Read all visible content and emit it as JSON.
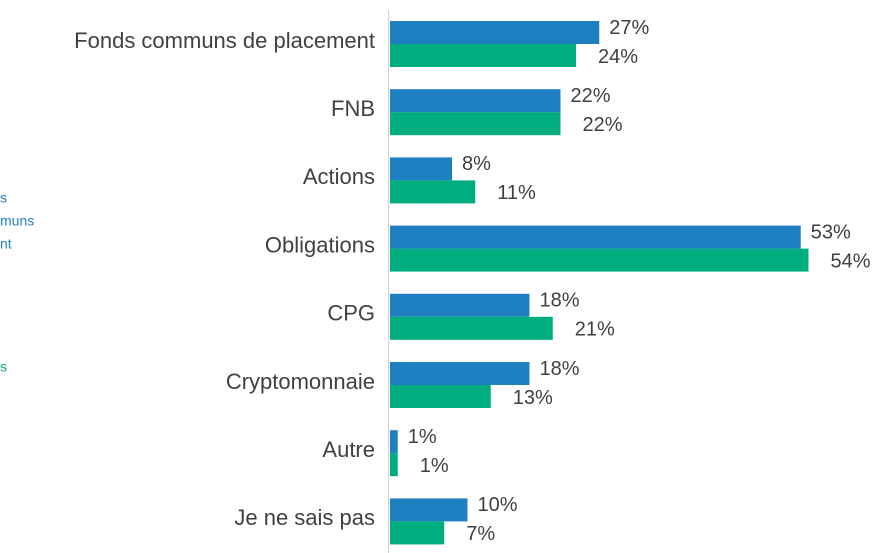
{
  "chart_data": {
    "type": "bar",
    "orientation": "horizontal",
    "categories": [
      "Fonds communs de placement",
      "FNB",
      "Actions",
      "Obligations",
      "CPG",
      "Cryptomonnaie",
      "Autre",
      "Je ne sais pas"
    ],
    "series": [
      {
        "name_lines": [
          "s",
          "muns",
          "nt"
        ],
        "color": "#1f80c1",
        "values": [
          27,
          22,
          8,
          53,
          18,
          18,
          1,
          10
        ]
      },
      {
        "name_lines": [
          "s"
        ],
        "color": "#00ad7e",
        "values": [
          24,
          22,
          11,
          54,
          21,
          13,
          1,
          7
        ]
      }
    ],
    "xlim": [
      0,
      60
    ]
  }
}
